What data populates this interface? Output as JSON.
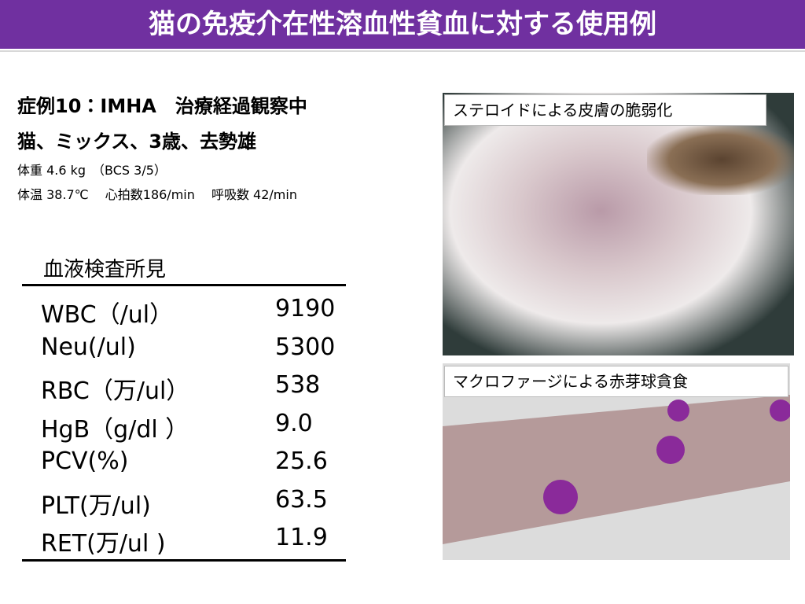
{
  "header": {
    "title": "猫の免疫介在性溶血性貧血に対する使用例"
  },
  "case": {
    "line1": "症例10：IMHA　治療経過観察中",
    "line2": "猫、ミックス、3歳、去勢雄",
    "line3": "体重 4.6 kg　（BCS 3/5）",
    "line4": "体温 38.7℃　 心拍数186/min　 呼吸数 42/min"
  },
  "table": {
    "title": "血液検査所見",
    "rows": [
      [
        "WBC（/ul）",
        "9190"
      ],
      [
        "Neu(/ul)",
        "5300"
      ],
      [
        "RBC（万/ul）",
        "538"
      ],
      [
        "HgB（g/dl ）",
        "9.0"
      ],
      [
        "PCV(%)",
        "25.6"
      ],
      [
        "PLT(万/ul)",
        "63.5"
      ],
      [
        "RET(万/ul )",
        "11.9"
      ]
    ]
  },
  "images": [
    {
      "caption": "ステロイドによる皮膚の脆弱化"
    },
    {
      "caption": "マクロファージによる赤芽球貪食"
    }
  ]
}
